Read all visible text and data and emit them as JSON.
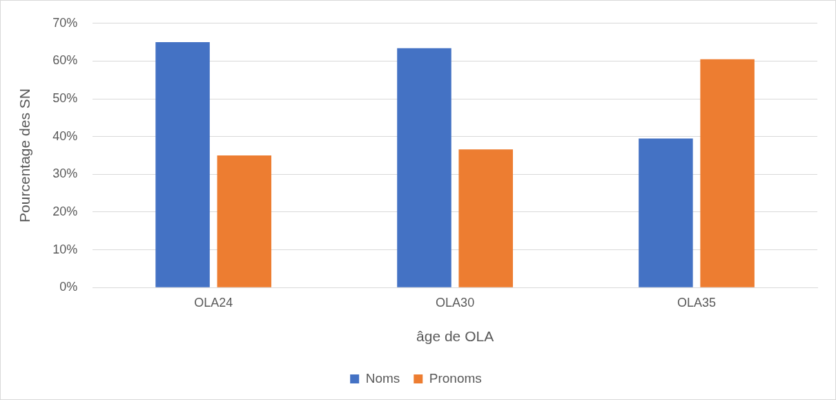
{
  "chart_data": {
    "type": "bar",
    "xlabel": "âge de OLA",
    "ylabel": "Pourcentage des SN",
    "categories": [
      "OLA24",
      "OLA30",
      "OLA35"
    ],
    "series": [
      {
        "name": "Noms",
        "color": "#4472c4",
        "values": [
          65,
          63.4,
          39.5
        ]
      },
      {
        "name": "Pronoms",
        "color": "#ed7d31",
        "values": [
          35,
          36.6,
          60.5
        ]
      }
    ],
    "ylim": [
      0,
      70
    ],
    "yticks": [
      {
        "value": 0,
        "label": "0%"
      },
      {
        "value": 10,
        "label": "10%"
      },
      {
        "value": 20,
        "label": "20%"
      },
      {
        "value": 30,
        "label": "30%"
      },
      {
        "value": 40,
        "label": "40%"
      },
      {
        "value": 50,
        "label": "50%"
      },
      {
        "value": 60,
        "label": "60%"
      },
      {
        "value": 70,
        "label": "70%"
      }
    ],
    "grid": "y",
    "legend": "bottom"
  }
}
